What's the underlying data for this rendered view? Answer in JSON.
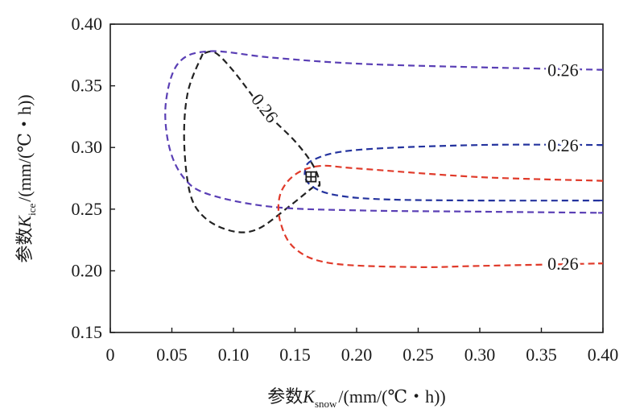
{
  "chart_data": {
    "type": "line",
    "subtype": "contour",
    "title": "",
    "xlabel": {
      "prefix": "参数",
      "symbol": "K",
      "subscript": "snow",
      "unit": "/(mm/(℃・h))"
    },
    "ylabel": {
      "prefix": "参数",
      "symbol": "K",
      "subscript": "ice",
      "unit": "/(mm/(℃・h))"
    },
    "xlim": [
      0,
      0.4
    ],
    "ylim": [
      0.15,
      0.4
    ],
    "x_ticks": [
      "0",
      "0.05",
      "0.10",
      "0.15",
      "0.20",
      "0.25",
      "0.30",
      "0.35",
      "0.40"
    ],
    "y_ticks": [
      "0.15",
      "0.20",
      "0.25",
      "0.30",
      "0.35",
      "0.40"
    ],
    "grid": false,
    "series": [
      {
        "color": "#222222",
        "label": "0.26",
        "points": [
          [
            0.075,
            0.376
          ],
          [
            0.063,
            0.345
          ],
          [
            0.06,
            0.305
          ],
          [
            0.065,
            0.262
          ],
          [
            0.078,
            0.242
          ],
          [
            0.1,
            0.232
          ],
          [
            0.12,
            0.234
          ],
          [
            0.145,
            0.252
          ],
          [
            0.165,
            0.268
          ],
          [
            0.17,
            0.27
          ],
          [
            0.165,
            0.285
          ],
          [
            0.15,
            0.305
          ],
          [
            0.125,
            0.33
          ],
          [
            0.1,
            0.362
          ],
          [
            0.085,
            0.377
          ],
          [
            0.075,
            0.376
          ]
        ]
      },
      {
        "color": "#5a3fb5",
        "label": "0.26",
        "points": [
          [
            0.4,
            0.363
          ],
          [
            0.3,
            0.365
          ],
          [
            0.2,
            0.368
          ],
          [
            0.13,
            0.373
          ],
          [
            0.08,
            0.378
          ],
          [
            0.055,
            0.368
          ],
          [
            0.045,
            0.335
          ],
          [
            0.048,
            0.3
          ],
          [
            0.06,
            0.275
          ],
          [
            0.08,
            0.262
          ],
          [
            0.13,
            0.252
          ],
          [
            0.2,
            0.249
          ],
          [
            0.3,
            0.248
          ],
          [
            0.4,
            0.247
          ]
        ]
      },
      {
        "color": "#24339e",
        "label": "0.26",
        "points": [
          [
            0.4,
            0.302
          ],
          [
            0.3,
            0.302
          ],
          [
            0.2,
            0.298
          ],
          [
            0.165,
            0.29
          ],
          [
            0.158,
            0.28
          ],
          [
            0.162,
            0.27
          ],
          [
            0.18,
            0.262
          ],
          [
            0.22,
            0.258
          ],
          [
            0.3,
            0.257
          ],
          [
            0.4,
            0.257
          ]
        ]
      },
      {
        "color": "#e03a2a",
        "label": "0.26",
        "points": [
          [
            0.4,
            0.273
          ],
          [
            0.3,
            0.276
          ],
          [
            0.2,
            0.283
          ],
          [
            0.17,
            0.285
          ],
          [
            0.15,
            0.278
          ],
          [
            0.138,
            0.262
          ],
          [
            0.138,
            0.24
          ],
          [
            0.15,
            0.218
          ],
          [
            0.18,
            0.206
          ],
          [
            0.25,
            0.203
          ],
          [
            0.3,
            0.204
          ],
          [
            0.4,
            0.206
          ]
        ]
      }
    ],
    "annotations": {
      "labels": [
        {
          "text": "0.26",
          "x": 0.355,
          "y": 0.363
        },
        {
          "text": "0.26",
          "x": 0.355,
          "y": 0.302
        },
        {
          "text": "0.26",
          "x": 0.355,
          "y": 0.206
        },
        {
          "text": "0.26",
          "x": 0.118,
          "y": 0.342,
          "rotation": 52
        }
      ],
      "marker": {
        "symbol": "⊞",
        "x": 0.163,
        "y": 0.277
      }
    }
  }
}
